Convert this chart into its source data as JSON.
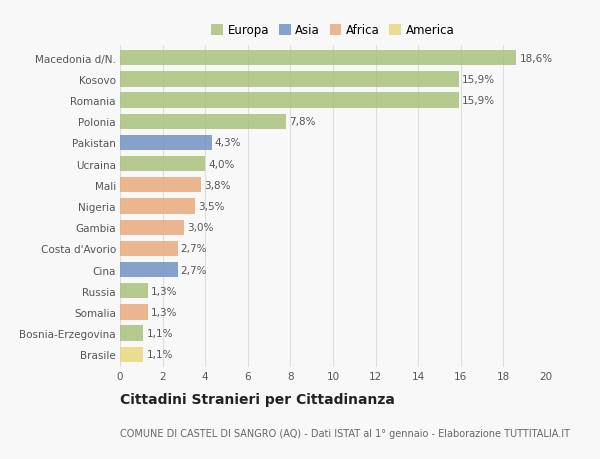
{
  "categories": [
    "Macedonia d/N.",
    "Kosovo",
    "Romania",
    "Polonia",
    "Pakistan",
    "Ucraina",
    "Mali",
    "Nigeria",
    "Gambia",
    "Costa d'Avorio",
    "Cina",
    "Russia",
    "Somalia",
    "Bosnia-Erzegovina",
    "Brasile"
  ],
  "values": [
    18.6,
    15.9,
    15.9,
    7.8,
    4.3,
    4.0,
    3.8,
    3.5,
    3.0,
    2.7,
    2.7,
    1.3,
    1.3,
    1.1,
    1.1
  ],
  "labels": [
    "18,6%",
    "15,9%",
    "15,9%",
    "7,8%",
    "4,3%",
    "4,0%",
    "3,8%",
    "3,5%",
    "3,0%",
    "2,7%",
    "2,7%",
    "1,3%",
    "1,3%",
    "1,1%",
    "1,1%"
  ],
  "bar_colors": [
    "#a8c078",
    "#a8c078",
    "#a8c078",
    "#a8c078",
    "#6e8fc0",
    "#a8c078",
    "#e8a878",
    "#e8a878",
    "#e8a878",
    "#e8a878",
    "#6e8fc0",
    "#a8c078",
    "#e8a878",
    "#a8c078",
    "#e8d878"
  ],
  "legend_labels": [
    "Europa",
    "Asia",
    "Africa",
    "America"
  ],
  "legend_colors": [
    "#a8c078",
    "#6e8fc0",
    "#e8a878",
    "#e8d878"
  ],
  "title": "Cittadini Stranieri per Cittadinanza",
  "subtitle": "COMUNE DI CASTEL DI SANGRO (AQ) - Dati ISTAT al 1° gennaio - Elaborazione TUTTITALIA.IT",
  "xlim": [
    0,
    20
  ],
  "xticks": [
    0,
    2,
    4,
    6,
    8,
    10,
    12,
    14,
    16,
    18,
    20
  ],
  "background_color": "#f8f8f8",
  "grid_color": "#dddddd",
  "bar_height": 0.72,
  "label_fontsize": 7.5,
  "title_fontsize": 10,
  "subtitle_fontsize": 7,
  "tick_fontsize": 7.5,
  "legend_fontsize": 8.5
}
